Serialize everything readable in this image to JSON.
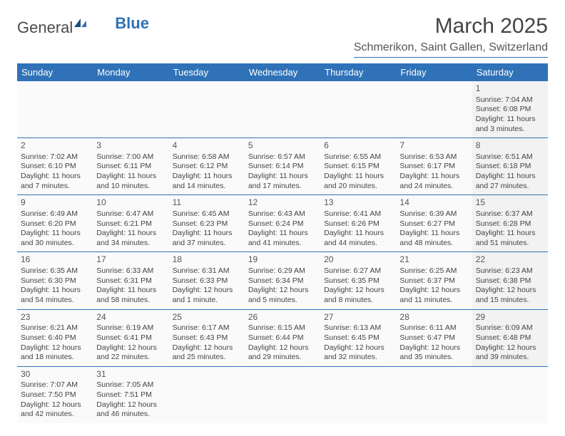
{
  "logo": {
    "text1": "General",
    "text2": "Blue"
  },
  "title": "March 2025",
  "location": "Schmerikon, Saint Gallen, Switzerland",
  "colors": {
    "header_bg": "#2f72b8",
    "header_text": "#ffffff",
    "cell_bg": "#fafafa",
    "sat_bg": "#f2f2f2",
    "border": "#2f72b8",
    "text": "#3a3a3a"
  },
  "typography": {
    "title_size": 30,
    "location_size": 16,
    "th_size": 13,
    "cell_size": 10.5
  },
  "weekdays": [
    "Sunday",
    "Monday",
    "Tuesday",
    "Wednesday",
    "Thursday",
    "Friday",
    "Saturday"
  ],
  "weeks": [
    [
      null,
      null,
      null,
      null,
      null,
      null,
      {
        "n": "1",
        "sr": "Sunrise: 7:04 AM",
        "ss": "Sunset: 6:08 PM",
        "dl": "Daylight: 11 hours and 3 minutes."
      }
    ],
    [
      {
        "n": "2",
        "sr": "Sunrise: 7:02 AM",
        "ss": "Sunset: 6:10 PM",
        "dl": "Daylight: 11 hours and 7 minutes."
      },
      {
        "n": "3",
        "sr": "Sunrise: 7:00 AM",
        "ss": "Sunset: 6:11 PM",
        "dl": "Daylight: 11 hours and 10 minutes."
      },
      {
        "n": "4",
        "sr": "Sunrise: 6:58 AM",
        "ss": "Sunset: 6:12 PM",
        "dl": "Daylight: 11 hours and 14 minutes."
      },
      {
        "n": "5",
        "sr": "Sunrise: 6:57 AM",
        "ss": "Sunset: 6:14 PM",
        "dl": "Daylight: 11 hours and 17 minutes."
      },
      {
        "n": "6",
        "sr": "Sunrise: 6:55 AM",
        "ss": "Sunset: 6:15 PM",
        "dl": "Daylight: 11 hours and 20 minutes."
      },
      {
        "n": "7",
        "sr": "Sunrise: 6:53 AM",
        "ss": "Sunset: 6:17 PM",
        "dl": "Daylight: 11 hours and 24 minutes."
      },
      {
        "n": "8",
        "sr": "Sunrise: 6:51 AM",
        "ss": "Sunset: 6:18 PM",
        "dl": "Daylight: 11 hours and 27 minutes."
      }
    ],
    [
      {
        "n": "9",
        "sr": "Sunrise: 6:49 AM",
        "ss": "Sunset: 6:20 PM",
        "dl": "Daylight: 11 hours and 30 minutes."
      },
      {
        "n": "10",
        "sr": "Sunrise: 6:47 AM",
        "ss": "Sunset: 6:21 PM",
        "dl": "Daylight: 11 hours and 34 minutes."
      },
      {
        "n": "11",
        "sr": "Sunrise: 6:45 AM",
        "ss": "Sunset: 6:23 PM",
        "dl": "Daylight: 11 hours and 37 minutes."
      },
      {
        "n": "12",
        "sr": "Sunrise: 6:43 AM",
        "ss": "Sunset: 6:24 PM",
        "dl": "Daylight: 11 hours and 41 minutes."
      },
      {
        "n": "13",
        "sr": "Sunrise: 6:41 AM",
        "ss": "Sunset: 6:26 PM",
        "dl": "Daylight: 11 hours and 44 minutes."
      },
      {
        "n": "14",
        "sr": "Sunrise: 6:39 AM",
        "ss": "Sunset: 6:27 PM",
        "dl": "Daylight: 11 hours and 48 minutes."
      },
      {
        "n": "15",
        "sr": "Sunrise: 6:37 AM",
        "ss": "Sunset: 6:28 PM",
        "dl": "Daylight: 11 hours and 51 minutes."
      }
    ],
    [
      {
        "n": "16",
        "sr": "Sunrise: 6:35 AM",
        "ss": "Sunset: 6:30 PM",
        "dl": "Daylight: 11 hours and 54 minutes."
      },
      {
        "n": "17",
        "sr": "Sunrise: 6:33 AM",
        "ss": "Sunset: 6:31 PM",
        "dl": "Daylight: 11 hours and 58 minutes."
      },
      {
        "n": "18",
        "sr": "Sunrise: 6:31 AM",
        "ss": "Sunset: 6:33 PM",
        "dl": "Daylight: 12 hours and 1 minute."
      },
      {
        "n": "19",
        "sr": "Sunrise: 6:29 AM",
        "ss": "Sunset: 6:34 PM",
        "dl": "Daylight: 12 hours and 5 minutes."
      },
      {
        "n": "20",
        "sr": "Sunrise: 6:27 AM",
        "ss": "Sunset: 6:35 PM",
        "dl": "Daylight: 12 hours and 8 minutes."
      },
      {
        "n": "21",
        "sr": "Sunrise: 6:25 AM",
        "ss": "Sunset: 6:37 PM",
        "dl": "Daylight: 12 hours and 11 minutes."
      },
      {
        "n": "22",
        "sr": "Sunrise: 6:23 AM",
        "ss": "Sunset: 6:38 PM",
        "dl": "Daylight: 12 hours and 15 minutes."
      }
    ],
    [
      {
        "n": "23",
        "sr": "Sunrise: 6:21 AM",
        "ss": "Sunset: 6:40 PM",
        "dl": "Daylight: 12 hours and 18 minutes."
      },
      {
        "n": "24",
        "sr": "Sunrise: 6:19 AM",
        "ss": "Sunset: 6:41 PM",
        "dl": "Daylight: 12 hours and 22 minutes."
      },
      {
        "n": "25",
        "sr": "Sunrise: 6:17 AM",
        "ss": "Sunset: 6:43 PM",
        "dl": "Daylight: 12 hours and 25 minutes."
      },
      {
        "n": "26",
        "sr": "Sunrise: 6:15 AM",
        "ss": "Sunset: 6:44 PM",
        "dl": "Daylight: 12 hours and 29 minutes."
      },
      {
        "n": "27",
        "sr": "Sunrise: 6:13 AM",
        "ss": "Sunset: 6:45 PM",
        "dl": "Daylight: 12 hours and 32 minutes."
      },
      {
        "n": "28",
        "sr": "Sunrise: 6:11 AM",
        "ss": "Sunset: 6:47 PM",
        "dl": "Daylight: 12 hours and 35 minutes."
      },
      {
        "n": "29",
        "sr": "Sunrise: 6:09 AM",
        "ss": "Sunset: 6:48 PM",
        "dl": "Daylight: 12 hours and 39 minutes."
      }
    ],
    [
      {
        "n": "30",
        "sr": "Sunrise: 7:07 AM",
        "ss": "Sunset: 7:50 PM",
        "dl": "Daylight: 12 hours and 42 minutes."
      },
      {
        "n": "31",
        "sr": "Sunrise: 7:05 AM",
        "ss": "Sunset: 7:51 PM",
        "dl": "Daylight: 12 hours and 46 minutes."
      },
      null,
      null,
      null,
      null,
      null
    ]
  ]
}
